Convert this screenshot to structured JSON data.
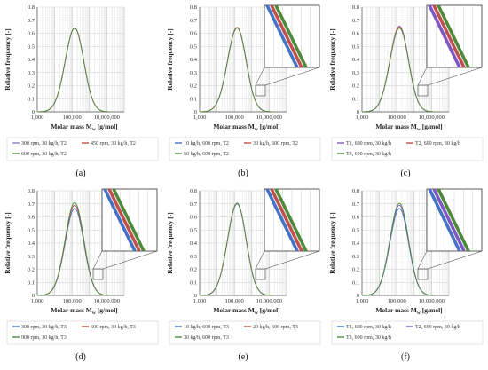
{
  "chart_data": [
    {
      "panel": "(a)",
      "type": "line",
      "ylabel": "Relative frequency [-]",
      "xlabel": "Molar mass M",
      "xlabel_sub": "w",
      "xlabel_unit": " [g/mol]",
      "xlim": [
        1000,
        100000000
      ],
      "ylim": [
        0,
        0.8
      ],
      "xscale": "log",
      "x_ticks": [
        "1,000",
        "100,000",
        "10,000,000"
      ],
      "y_ticks": [
        "0",
        "0.1",
        "0.2",
        "0.3",
        "0.4",
        "0.5",
        "0.6",
        "0.7",
        "0.8"
      ],
      "inset": false,
      "series": [
        {
          "name": "300 rpm, 30 kg/h, T2",
          "color": "#8e7cc3",
          "peak_x": 143000,
          "peak_y": 0.64
        },
        {
          "name": "450 rpm, 30 kg/h, T2",
          "color": "#c0504d",
          "peak_x": 143000,
          "peak_y": 0.64
        },
        {
          "name": "600 rpm, 30 kg/h, T2",
          "color": "#4e8a3a",
          "peak_x": 143000,
          "peak_y": 0.64
        }
      ]
    },
    {
      "panel": "(b)",
      "type": "line",
      "ylabel": "Relative frequency [-]",
      "xlabel": "Molar mass M",
      "xlabel_sub": "w",
      "xlabel_unit": " [g/mol]",
      "xlim": [
        1000,
        100000000
      ],
      "ylim": [
        0,
        0.8
      ],
      "xscale": "log",
      "x_ticks": [
        "1,000",
        "100,000",
        "10,000,000"
      ],
      "y_ticks": [
        "0",
        "0.1",
        "0.2",
        "0.3",
        "0.4",
        "0.5",
        "0.6",
        "0.7",
        "0.8"
      ],
      "inset": true,
      "series": [
        {
          "name": "10 kg/h, 600 rpm, T2",
          "color": "#4472c4",
          "peak_x": 143000,
          "peak_y": 0.645
        },
        {
          "name": "30 kg/h, 600 rpm, T2",
          "color": "#c0504d",
          "peak_x": 143000,
          "peak_y": 0.645
        },
        {
          "name": "50 kg/h, 600 rpm, T2",
          "color": "#4e8a3a",
          "peak_x": 143000,
          "peak_y": 0.64
        }
      ]
    },
    {
      "panel": "(c)",
      "type": "line",
      "ylabel": "Relative frequency [-]",
      "xlabel": "Molar mass M",
      "xlabel_sub": "w",
      "xlabel_unit": " [g/mol]",
      "xlim": [
        1000,
        100000000
      ],
      "ylim": [
        0,
        0.8
      ],
      "xscale": "log",
      "x_ticks": [
        "1,000",
        "100,000",
        "10,000,000"
      ],
      "y_ticks": [
        "0",
        "0.1",
        "0.2",
        "0.3",
        "0.4",
        "0.5",
        "0.6",
        "0.7",
        "0.8"
      ],
      "inset": true,
      "series": [
        {
          "name": "T1, 600 rpm, 30 kg/h",
          "color": "#7e57c2",
          "peak_x": 143000,
          "peak_y": 0.655
        },
        {
          "name": "T2, 600 rpm, 30 kg/h",
          "color": "#c0504d",
          "peak_x": 143000,
          "peak_y": 0.65
        },
        {
          "name": "T3, 600 rpm, 30 kg/h",
          "color": "#4e8a3a",
          "peak_x": 143000,
          "peak_y": 0.64
        }
      ]
    },
    {
      "panel": "(d)",
      "type": "line",
      "ylabel": "Relative frequency [-]",
      "xlabel": "Molar mass M",
      "xlabel_sub": "w",
      "xlabel_unit": " [g/mol]",
      "xlim": [
        1000,
        100000000
      ],
      "ylim": [
        0,
        0.8
      ],
      "xscale": "log",
      "x_ticks": [
        "1,000",
        "100,000",
        "10,000,000"
      ],
      "y_ticks": [
        "0",
        "0.1",
        "0.2",
        "0.3",
        "0.4",
        "0.5",
        "0.6",
        "0.7",
        "0.8"
      ],
      "inset": true,
      "series": [
        {
          "name": "300 rpm, 30 kg/h, T3",
          "color": "#4472c4",
          "peak_x": 143000,
          "peak_y": 0.665
        },
        {
          "name": "600 rpm, 30 kg/h, T3",
          "color": "#c0504d",
          "peak_x": 143000,
          "peak_y": 0.69
        },
        {
          "name": "900 rpm, 30 kg/h, T3",
          "color": "#4e8a3a",
          "peak_x": 143000,
          "peak_y": 0.71
        }
      ]
    },
    {
      "panel": "(e)",
      "type": "line",
      "ylabel": "Relative frequency [-]",
      "xlabel": "Molar mass M",
      "xlabel_sub": "w",
      "xlabel_unit": " [g/mol]",
      "xlim": [
        1000,
        100000000
      ],
      "ylim": [
        0,
        0.8
      ],
      "xscale": "log",
      "x_ticks": [
        "1,000",
        "100,000",
        "10,000,000"
      ],
      "y_ticks": [
        "0",
        "0.1",
        "0.2",
        "0.3",
        "0.4",
        "0.5",
        "0.6",
        "0.7",
        "0.8"
      ],
      "inset": true,
      "series": [
        {
          "name": "10 kg/h, 600 rpm, T3",
          "color": "#4472c4",
          "peak_x": 143000,
          "peak_y": 0.7
        },
        {
          "name": "20 kg/h, 600 rpm, T3",
          "color": "#c0504d",
          "peak_x": 143000,
          "peak_y": 0.705
        },
        {
          "name": "30 kg/h, 600 rpm, T3",
          "color": "#4e8a3a",
          "peak_x": 143000,
          "peak_y": 0.705
        }
      ]
    },
    {
      "panel": "(f)",
      "type": "line",
      "ylabel": "Relative frequency [-]",
      "xlabel": "Molar mass M",
      "xlabel_sub": "w",
      "xlabel_unit": " [g/mol]",
      "xlim": [
        1000,
        100000000
      ],
      "ylim": [
        0,
        0.8
      ],
      "xscale": "log",
      "x_ticks": [
        "1,000",
        "100,000",
        "10,000,000"
      ],
      "y_ticks": [
        "0",
        "0.1",
        "0.2",
        "0.3",
        "0.4",
        "0.5",
        "0.6",
        "0.7",
        "0.8"
      ],
      "inset": true,
      "series": [
        {
          "name": "T1, 600 rpm, 30 kg/h",
          "color": "#4472c4",
          "peak_x": 143000,
          "peak_y": 0.665
        },
        {
          "name": "T2, 600 rpm, 30 kg/h",
          "color": "#7e57c2",
          "peak_x": 143000,
          "peak_y": 0.69
        },
        {
          "name": "T3, 600 rpm, 30 kg/h",
          "color": "#4e8a3a",
          "peak_x": 143000,
          "peak_y": 0.705
        }
      ]
    }
  ]
}
